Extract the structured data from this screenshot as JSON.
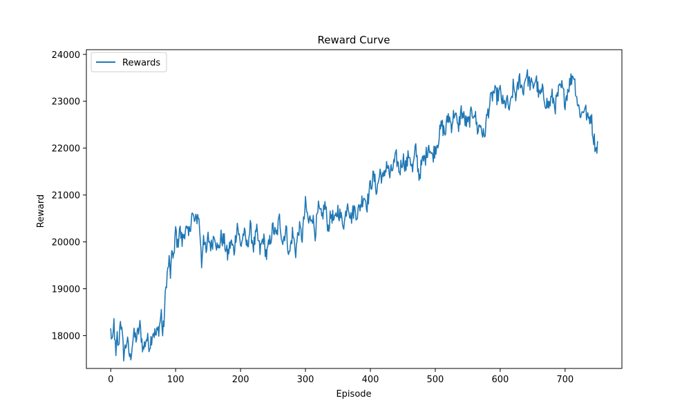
{
  "chart_data": {
    "type": "line",
    "title": "Reward Curve",
    "xlabel": "Episode",
    "ylabel": "Reward",
    "xlim": [
      -37.5,
      787.5
    ],
    "ylim": [
      17300,
      24100
    ],
    "xticks": [
      0,
      100,
      200,
      300,
      400,
      500,
      600,
      700
    ],
    "yticks": [
      18000,
      19000,
      20000,
      21000,
      22000,
      23000,
      24000
    ],
    "grid": false,
    "legend": "upper-left",
    "series": [
      {
        "name": "Rewards",
        "color": "#1f77b4",
        "anchors": [
          [
            0,
            18100
          ],
          [
            3,
            17800
          ],
          [
            5,
            18300
          ],
          [
            8,
            17500
          ],
          [
            10,
            18000
          ],
          [
            12,
            17700
          ],
          [
            15,
            18400
          ],
          [
            20,
            17600
          ],
          [
            25,
            17900
          ],
          [
            30,
            17500
          ],
          [
            35,
            18000
          ],
          [
            40,
            17950
          ],
          [
            45,
            18200
          ],
          [
            50,
            17700
          ],
          [
            55,
            17950
          ],
          [
            60,
            17800
          ],
          [
            65,
            18100
          ],
          [
            70,
            18000
          ],
          [
            75,
            18200
          ],
          [
            78,
            18500
          ],
          [
            80,
            18000
          ],
          [
            82,
            18300
          ],
          [
            84,
            18800
          ],
          [
            86,
            19200
          ],
          [
            88,
            19400
          ],
          [
            90,
            19600
          ],
          [
            92,
            19300
          ],
          [
            95,
            19800
          ],
          [
            98,
            19700
          ],
          [
            100,
            20300
          ],
          [
            103,
            19900
          ],
          [
            106,
            20300
          ],
          [
            110,
            20000
          ],
          [
            115,
            20300
          ],
          [
            120,
            20100
          ],
          [
            125,
            20600
          ],
          [
            130,
            20400
          ],
          [
            135,
            20600
          ],
          [
            138,
            20100
          ],
          [
            140,
            19500
          ],
          [
            143,
            20200
          ],
          [
            147,
            19700
          ],
          [
            150,
            20100
          ],
          [
            155,
            19900
          ],
          [
            160,
            20200
          ],
          [
            165,
            19800
          ],
          [
            170,
            20100
          ],
          [
            175,
            20000
          ],
          [
            180,
            19700
          ],
          [
            185,
            20000
          ],
          [
            190,
            19800
          ],
          [
            195,
            20400
          ],
          [
            200,
            19900
          ],
          [
            205,
            20200
          ],
          [
            210,
            19900
          ],
          [
            215,
            20300
          ],
          [
            220,
            19900
          ],
          [
            225,
            20200
          ],
          [
            230,
            19800
          ],
          [
            235,
            20100
          ],
          [
            240,
            19700
          ],
          [
            245,
            20000
          ],
          [
            250,
            20300
          ],
          [
            255,
            20100
          ],
          [
            260,
            20500
          ],
          [
            265,
            20000
          ],
          [
            270,
            20300
          ],
          [
            275,
            19700
          ],
          [
            280,
            20200
          ],
          [
            285,
            19800
          ],
          [
            290,
            20300
          ],
          [
            295,
            20100
          ],
          [
            300,
            20800
          ],
          [
            305,
            20400
          ],
          [
            310,
            20600
          ],
          [
            315,
            20200
          ],
          [
            320,
            20700
          ],
          [
            325,
            20500
          ],
          [
            330,
            20800
          ],
          [
            335,
            20300
          ],
          [
            340,
            20600
          ],
          [
            345,
            20400
          ],
          [
            350,
            20700
          ],
          [
            355,
            20500
          ],
          [
            360,
            20400
          ],
          [
            365,
            20900
          ],
          [
            370,
            20500
          ],
          [
            375,
            20700
          ],
          [
            380,
            20600
          ],
          [
            385,
            20800
          ],
          [
            390,
            21000
          ],
          [
            395,
            20800
          ],
          [
            400,
            21200
          ],
          [
            405,
            21400
          ],
          [
            410,
            21100
          ],
          [
            415,
            21500
          ],
          [
            420,
            21300
          ],
          [
            425,
            21700
          ],
          [
            430,
            21400
          ],
          [
            435,
            21600
          ],
          [
            440,
            21800
          ],
          [
            445,
            21500
          ],
          [
            450,
            21800
          ],
          [
            455,
            21600
          ],
          [
            460,
            21900
          ],
          [
            465,
            21500
          ],
          [
            470,
            22000
          ],
          [
            475,
            21400
          ],
          [
            480,
            21700
          ],
          [
            485,
            21800
          ],
          [
            490,
            22100
          ],
          [
            495,
            21800
          ],
          [
            500,
            22000
          ],
          [
            505,
            22200
          ],
          [
            510,
            22500
          ],
          [
            515,
            22300
          ],
          [
            520,
            22700
          ],
          [
            525,
            22500
          ],
          [
            530,
            22800
          ],
          [
            535,
            22400
          ],
          [
            540,
            22800
          ],
          [
            545,
            22600
          ],
          [
            550,
            22500
          ],
          [
            555,
            22700
          ],
          [
            560,
            22800
          ],
          [
            565,
            22400
          ],
          [
            570,
            22500
          ],
          [
            575,
            22200
          ],
          [
            580,
            22700
          ],
          [
            585,
            23000
          ],
          [
            590,
            23200
          ],
          [
            595,
            23100
          ],
          [
            600,
            23200
          ],
          [
            605,
            22900
          ],
          [
            610,
            23000
          ],
          [
            615,
            22800
          ],
          [
            620,
            23300
          ],
          [
            625,
            23100
          ],
          [
            630,
            23500
          ],
          [
            635,
            23200
          ],
          [
            640,
            23600
          ],
          [
            645,
            23400
          ],
          [
            650,
            23300
          ],
          [
            655,
            23500
          ],
          [
            660,
            23100
          ],
          [
            665,
            23200
          ],
          [
            670,
            23000
          ],
          [
            675,
            22900
          ],
          [
            680,
            23100
          ],
          [
            685,
            22900
          ],
          [
            690,
            23200
          ],
          [
            695,
            23300
          ],
          [
            700,
            23000
          ],
          [
            705,
            23300
          ],
          [
            710,
            23500
          ],
          [
            713,
            23600
          ],
          [
            716,
            23300
          ],
          [
            720,
            22900
          ],
          [
            725,
            22700
          ],
          [
            730,
            22900
          ],
          [
            735,
            22600
          ],
          [
            740,
            22700
          ],
          [
            743,
            22300
          ],
          [
            746,
            22100
          ],
          [
            748,
            21950
          ],
          [
            750,
            22150
          ]
        ]
      }
    ]
  }
}
